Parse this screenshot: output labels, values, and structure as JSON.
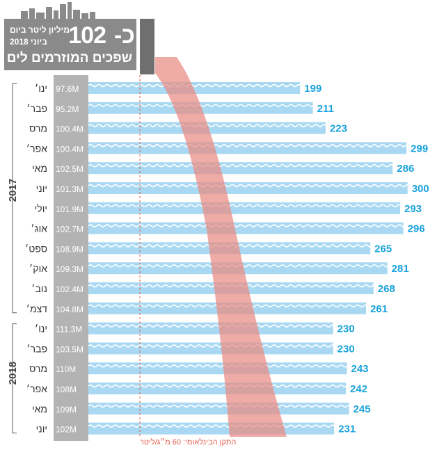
{
  "header": {
    "prefix": "כ-",
    "big_number": "102",
    "line1": "מיליון ליטר ביום",
    "line2": "ביוני 2018",
    "line3": "שפכים המוזרמים לים"
  },
  "footnote": "התקן הבינלאומי: 60 מ״ג/ליטר",
  "colors": {
    "bar": "#a9d9f2",
    "wave": "#ffffff",
    "value_text": "#1aa3dc",
    "gray_column": "#b3b3b3",
    "header_bg": "#8a8a8a",
    "pipe": "#6f6f6f",
    "plume": "#e98a82",
    "standard_line": "#e45b45"
  },
  "chart_data": {
    "type": "bar",
    "orientation": "horizontal",
    "categories": [
      "ינו׳",
      "פבר׳",
      "מרס",
      "אפר׳",
      "מאי",
      "יוני",
      "יולי",
      "אוג׳",
      "ספט׳",
      "אוק׳",
      "נוב׳",
      "דצמ׳",
      "ינו׳",
      "פבר׳",
      "מרס",
      "אפר׳",
      "מאי",
      "יוני"
    ],
    "years": [
      {
        "label": "2017",
        "start": 0,
        "end": 11
      },
      {
        "label": "2018",
        "start": 12,
        "end": 17
      }
    ],
    "volumes": [
      "97.6M",
      "95.2M",
      "100.4M",
      "100.4M",
      "102.5M",
      "101.3M",
      "101.9M",
      "102.7M",
      "108.9M",
      "109.3M",
      "102.4M",
      "104.8M",
      "111.3M",
      "103.5M",
      "110M",
      "108M",
      "109M",
      "102M"
    ],
    "values": [
      199,
      211,
      223,
      299,
      286,
      300,
      293,
      296,
      265,
      281,
      268,
      261,
      230,
      230,
      243,
      242,
      245,
      231
    ],
    "reference_line": {
      "value": 60
    }
  }
}
